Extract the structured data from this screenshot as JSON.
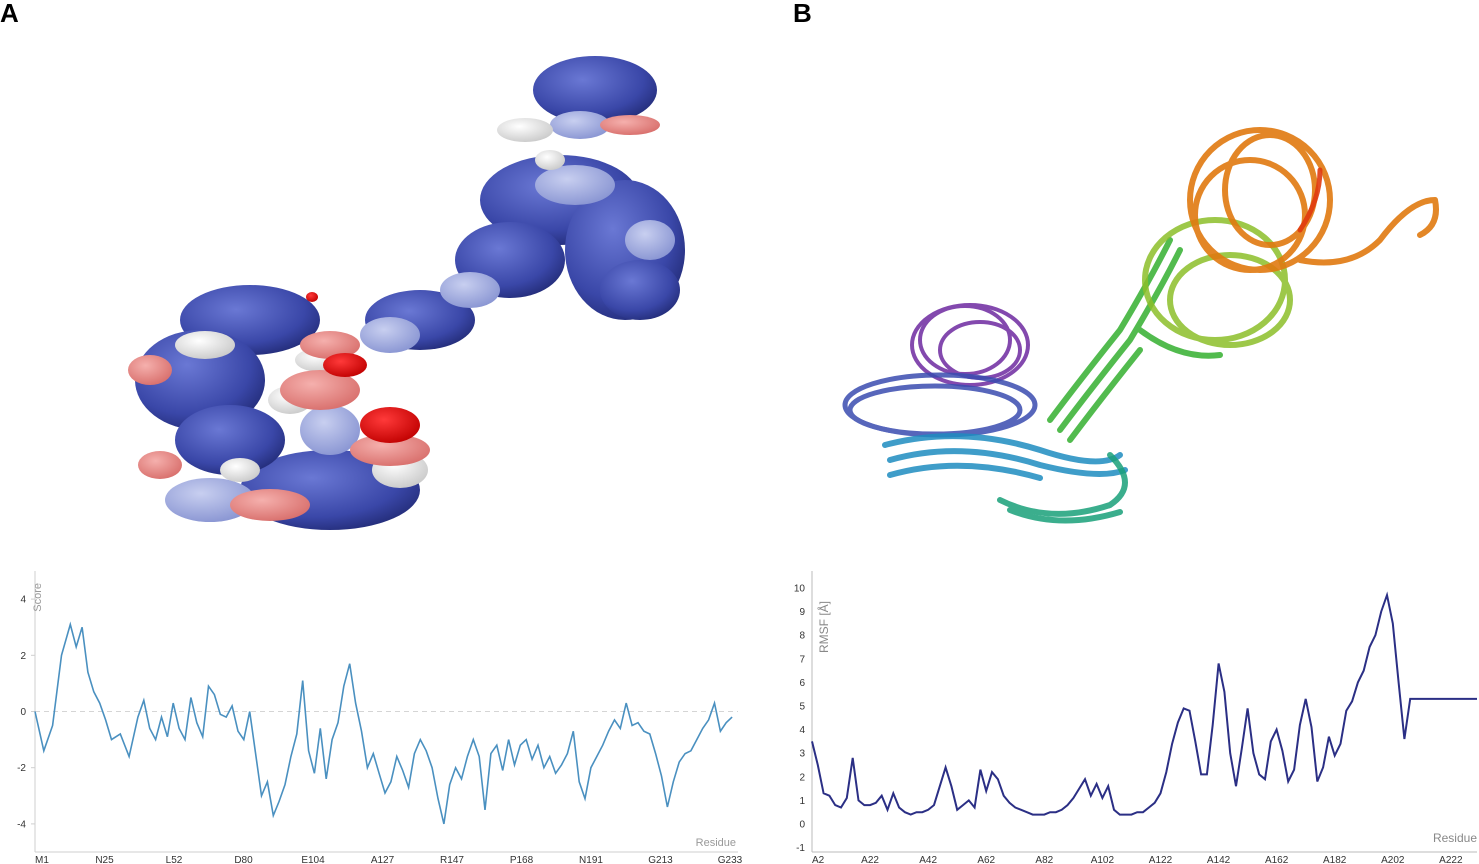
{
  "panels": {
    "a_label": "A",
    "b_label": "B"
  },
  "colors": {
    "surface_blue": "#3f4fb0",
    "surface_light_blue": "#a3aee0",
    "surface_white": "#eeeeee",
    "surface_salmon": "#ea8a88",
    "surface_red": "#e01010",
    "line_a": "#4a90c0",
    "line_b": "#2b2f85"
  },
  "chart_data": [
    {
      "type": "line",
      "panel": "A",
      "xlabel": "Residue",
      "ylabel": "Score",
      "x_ticks": [
        "M1",
        "N25",
        "L52",
        "D80",
        "E104",
        "A127",
        "R147",
        "P168",
        "N191",
        "G213",
        "G233"
      ],
      "y_ticks": [
        "4",
        "2",
        "0",
        "-2",
        "-4"
      ],
      "ylim": [
        -5,
        5
      ],
      "xlim": [
        1,
        240
      ],
      "reference_line": 0,
      "series": [
        {
          "x": [
            1,
            4,
            7,
            10,
            13,
            15,
            17,
            19,
            21,
            23,
            25,
            27,
            30,
            33,
            36,
            38,
            40,
            42,
            44,
            46,
            48,
            50,
            52,
            54,
            56,
            58,
            60,
            62,
            64,
            66,
            68,
            70,
            72,
            74,
            76,
            78,
            80,
            82,
            84,
            86,
            88,
            90,
            92,
            94,
            96,
            98,
            100,
            102,
            104,
            106,
            108,
            110,
            112,
            114,
            116,
            118,
            120,
            122,
            124,
            126,
            128,
            130,
            132,
            134,
            136,
            138,
            140,
            142,
            144,
            146,
            148,
            150,
            152,
            154,
            156,
            158,
            160,
            162,
            164,
            166,
            168,
            170,
            172,
            174,
            176,
            178,
            180,
            182,
            184,
            186,
            188,
            190,
            192,
            194,
            196,
            198,
            200,
            202,
            204,
            206,
            208,
            210,
            212,
            214,
            216,
            218,
            220,
            222,
            224,
            226,
            228,
            230,
            232,
            234,
            236,
            238
          ],
          "y": [
            0,
            -1.4,
            -0.5,
            2.0,
            3.1,
            2.3,
            3.0,
            1.4,
            0.7,
            0.3,
            -0.3,
            -1.0,
            -0.8,
            -1.6,
            -0.2,
            0.4,
            -0.6,
            -1.0,
            -0.2,
            -0.9,
            0.3,
            -0.6,
            -1.0,
            0.5,
            -0.4,
            -0.9,
            0.9,
            0.6,
            -0.1,
            -0.2,
            0.2,
            -0.7,
            -1.0,
            0.0,
            -1.5,
            -3.0,
            -2.5,
            -3.7,
            -3.2,
            -2.6,
            -1.6,
            -0.8,
            1.1,
            -1.4,
            -2.2,
            -0.6,
            -2.4,
            -1.0,
            -0.4,
            0.9,
            1.7,
            0.3,
            -0.7,
            -2.0,
            -1.5,
            -2.2,
            -2.9,
            -2.5,
            -1.6,
            -2.1,
            -2.7,
            -1.5,
            -1.0,
            -1.4,
            -2.0,
            -3.1,
            -4.0,
            -2.6,
            -2.0,
            -2.4,
            -1.6,
            -1.0,
            -1.6,
            -3.5,
            -1.5,
            -1.2,
            -2.1,
            -1.0,
            -1.9,
            -1.2,
            -1.0,
            -1.7,
            -1.2,
            -2.0,
            -1.6,
            -2.2,
            -1.9,
            -1.5,
            -0.7,
            -2.5,
            -3.1,
            -2.0,
            -1.6,
            -1.2,
            -0.7,
            -0.3,
            -0.6,
            0.3,
            -0.5,
            -0.4,
            -0.7,
            -0.8,
            -1.5,
            -2.3,
            -3.4,
            -2.5,
            -1.8,
            -1.5,
            -1.4,
            -1.0,
            -0.6,
            -0.3,
            0.3,
            -0.7,
            -0.4,
            -0.2
          ]
        }
      ]
    },
    {
      "type": "line",
      "panel": "B",
      "xlabel": "Residue",
      "ylabel": "RMSF [Å]",
      "x_ticks": [
        "A2",
        "A22",
        "A42",
        "A62",
        "A82",
        "A102",
        "A122",
        "A142",
        "A162",
        "A182",
        "A202",
        "A222"
      ],
      "y_ticks": [
        "10",
        "9",
        "8",
        "7",
        "6",
        "5",
        "4",
        "3",
        "2",
        "1",
        "0",
        "-1"
      ],
      "ylim": [
        -1,
        10.5
      ],
      "xlim": [
        2,
        231
      ],
      "series": [
        {
          "x": [
            2,
            4,
            6,
            8,
            10,
            12,
            14,
            16,
            18,
            20,
            22,
            24,
            26,
            28,
            30,
            32,
            34,
            36,
            38,
            40,
            42,
            44,
            46,
            48,
            50,
            52,
            54,
            56,
            58,
            60,
            62,
            64,
            66,
            68,
            70,
            72,
            74,
            76,
            78,
            80,
            82,
            84,
            86,
            88,
            90,
            92,
            94,
            96,
            98,
            100,
            102,
            104,
            106,
            108,
            110,
            112,
            114,
            116,
            118,
            120,
            122,
            124,
            126,
            128,
            130,
            132,
            134,
            136,
            138,
            140,
            142,
            144,
            146,
            148,
            150,
            152,
            154,
            156,
            158,
            160,
            162,
            164,
            166,
            168,
            170,
            172,
            174,
            176,
            178,
            180,
            182,
            184,
            186,
            188,
            190,
            192,
            194,
            196,
            198,
            200,
            202,
            204,
            206,
            208,
            210,
            212,
            214,
            216,
            218,
            220,
            222,
            224,
            226,
            228,
            230,
            231
          ],
          "y": [
            3.5,
            2.5,
            1.3,
            1.2,
            0.8,
            0.7,
            1.1,
            2.8,
            1.0,
            0.8,
            0.8,
            0.9,
            1.2,
            0.6,
            1.3,
            0.7,
            0.5,
            0.4,
            0.5,
            0.5,
            0.6,
            0.8,
            1.6,
            2.4,
            1.6,
            0.6,
            0.8,
            1.0,
            0.7,
            2.3,
            1.4,
            2.2,
            1.9,
            1.2,
            0.9,
            0.7,
            0.6,
            0.5,
            0.4,
            0.4,
            0.4,
            0.5,
            0.5,
            0.6,
            0.8,
            1.1,
            1.5,
            1.9,
            1.2,
            1.7,
            1.1,
            1.6,
            0.6,
            0.4,
            0.4,
            0.4,
            0.5,
            0.5,
            0.7,
            0.9,
            1.3,
            2.2,
            3.4,
            4.3,
            4.9,
            4.8,
            3.5,
            2.1,
            2.1,
            4.2,
            6.8,
            5.6,
            3.0,
            1.6,
            3.2,
            4.9,
            3.0,
            2.1,
            1.9,
            3.5,
            4.0,
            3.1,
            1.8,
            2.3,
            4.2,
            5.3,
            4.1,
            1.8,
            2.4,
            3.7,
            2.9,
            3.4,
            4.8,
            5.2,
            6.0,
            6.5,
            7.5,
            8.0,
            9.0,
            9.7,
            8.5,
            6.0,
            3.6,
            5.3,
            5.3,
            5.3,
            5.3,
            5.3,
            5.3,
            5.3,
            5.3,
            5.3,
            5.3,
            5.3,
            5.3,
            5.3
          ]
        }
      ]
    }
  ]
}
